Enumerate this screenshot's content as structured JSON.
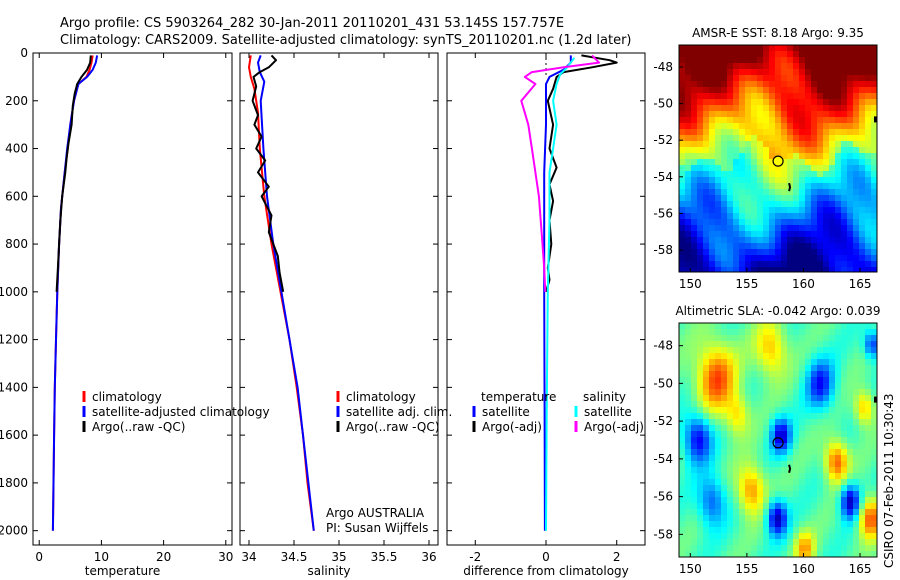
{
  "header": {
    "line1": "Argo profile: CS 5903264_282 30-Jan-2011 20110201_431 53.145S 157.757E",
    "line2": "Climatology: CARS2009. Satellite-adjusted climatology: synTS_20110201.nc (1.2d later)"
  },
  "side_label": "CSIRO 07-Feb-2011 10:30:43",
  "colors": {
    "clim": "#ff0000",
    "sat": "#0000ff",
    "argo": "#000000",
    "sat_sal": "#00ffff",
    "argo_sal": "#ff00ff"
  },
  "chart_data": [
    {
      "type": "line",
      "xlabel": "temperature",
      "xlim": [
        -1,
        31
      ],
      "ylim": [
        2060,
        0
      ],
      "xticks": [
        "0",
        "10",
        "20",
        "30"
      ],
      "yticks": [
        "0",
        "200",
        "400",
        "600",
        "800",
        "1000",
        "1200",
        "1400",
        "1600",
        "1800",
        "2000"
      ],
      "legend": [
        "climatology",
        "satellite-adjusted climatology",
        "Argo(..raw -QC)"
      ],
      "series": [
        {
          "name": "climatology",
          "color": "#ff0000",
          "points": [
            [
              8.6,
              10
            ],
            [
              8.4,
              40
            ],
            [
              8.1,
              70
            ],
            [
              7.6,
              100
            ],
            [
              6.3,
              130
            ],
            [
              5.6,
              200
            ],
            [
              5.0,
              300
            ],
            [
              4.6,
              400
            ],
            [
              4.1,
              500
            ],
            [
              3.5,
              650
            ],
            [
              3.2,
              800
            ],
            [
              2.9,
              1000
            ],
            [
              2.7,
              1200
            ],
            [
              2.5,
              1400
            ],
            [
              2.4,
              1600
            ],
            [
              2.3,
              1800
            ],
            [
              2.2,
              2000
            ]
          ]
        },
        {
          "name": "satellite-adjusted climatology",
          "color": "#0000ff",
          "points": [
            [
              9.3,
              10
            ],
            [
              9.1,
              40
            ],
            [
              8.6,
              70
            ],
            [
              7.7,
              100
            ],
            [
              6.3,
              130
            ],
            [
              5.6,
              200
            ],
            [
              5.0,
              300
            ],
            [
              4.5,
              400
            ],
            [
              4.1,
              500
            ],
            [
              3.5,
              650
            ],
            [
              3.2,
              800
            ],
            [
              2.9,
              1000
            ],
            [
              2.7,
              1200
            ],
            [
              2.5,
              1400
            ],
            [
              2.4,
              1600
            ],
            [
              2.3,
              1800
            ],
            [
              2.2,
              2000
            ]
          ]
        },
        {
          "name": "Argo(..raw -QC)",
          "color": "#000000",
          "points": [
            [
              8.3,
              10
            ],
            [
              8.2,
              40
            ],
            [
              7.7,
              70
            ],
            [
              6.8,
              100
            ],
            [
              6.1,
              130
            ],
            [
              5.7,
              170
            ],
            [
              5.4,
              220
            ],
            [
              5.2,
              300
            ],
            [
              4.7,
              380
            ],
            [
              4.4,
              440
            ],
            [
              4.2,
              500
            ],
            [
              3.7,
              600
            ],
            [
              3.4,
              700
            ],
            [
              3.2,
              800
            ],
            [
              3.0,
              900
            ],
            [
              2.8,
              1000
            ]
          ]
        }
      ]
    },
    {
      "type": "line",
      "xlabel": "salinity",
      "xlim": [
        33.9,
        36.1
      ],
      "ylim": [
        2060,
        0
      ],
      "xticks": [
        "34",
        "34.5",
        "35",
        "35.5",
        "36"
      ],
      "legend": [
        "climatology",
        "satellite adj. clim.",
        "Argo(..raw -QC)"
      ],
      "notes": [
        "Argo AUSTRALIA",
        "PI: Susan Wijffels"
      ],
      "series": [
        {
          "name": "climatology",
          "color": "#ff0000",
          "points": [
            [
              34.02,
              10
            ],
            [
              34.0,
              60
            ],
            [
              34.02,
              100
            ],
            [
              34.06,
              150
            ],
            [
              34.1,
              250
            ],
            [
              34.12,
              400
            ],
            [
              34.17,
              600
            ],
            [
              34.25,
              800
            ],
            [
              34.35,
              1000
            ],
            [
              34.45,
              1200
            ],
            [
              34.53,
              1400
            ],
            [
              34.6,
              1600
            ],
            [
              34.65,
              1800
            ],
            [
              34.72,
              2000
            ]
          ]
        },
        {
          "name": "satellite adj. clim.",
          "color": "#0000ff",
          "points": [
            [
              34.13,
              10
            ],
            [
              34.1,
              40
            ],
            [
              34.12,
              80
            ],
            [
              34.17,
              120
            ],
            [
              34.13,
              200
            ],
            [
              34.16,
              400
            ],
            [
              34.2,
              600
            ],
            [
              34.27,
              800
            ],
            [
              34.36,
              1000
            ],
            [
              34.45,
              1200
            ],
            [
              34.54,
              1400
            ],
            [
              34.6,
              1600
            ],
            [
              34.66,
              1800
            ],
            [
              34.72,
              2000
            ]
          ]
        },
        {
          "name": "Argo(..raw -QC)",
          "color": "#000000",
          "points": [
            [
              34.25,
              10
            ],
            [
              34.3,
              30
            ],
            [
              34.22,
              60
            ],
            [
              34.12,
              80
            ],
            [
              34.05,
              100
            ],
            [
              34.08,
              140
            ],
            [
              34.04,
              200
            ],
            [
              34.1,
              260
            ],
            [
              34.06,
              300
            ],
            [
              34.14,
              350
            ],
            [
              34.08,
              400
            ],
            [
              34.18,
              450
            ],
            [
              34.1,
              500
            ],
            [
              34.22,
              560
            ],
            [
              34.14,
              600
            ],
            [
              34.25,
              680
            ],
            [
              34.22,
              750
            ],
            [
              34.32,
              850
            ],
            [
              34.34,
              920
            ],
            [
              34.38,
              1000
            ]
          ]
        }
      ]
    },
    {
      "type": "line",
      "xlabel": "difference from climatology",
      "xlim": [
        -2.8,
        2.8
      ],
      "ylim": [
        2060,
        0
      ],
      "xticks": [
        "-2",
        "0",
        "2"
      ],
      "legend": [
        "temperature",
        "satellite",
        "Argo(-adj)",
        "salinity",
        "satellite",
        "Argo(-adj)"
      ],
      "series": [
        {
          "name": "temperature satellite",
          "color": "#0000ff",
          "points": [
            [
              0.7,
              10
            ],
            [
              0.7,
              40
            ],
            [
              0.5,
              70
            ],
            [
              0.1,
              100
            ],
            [
              0.0,
              130
            ],
            [
              0.0,
              300
            ],
            [
              -0.05,
              500
            ],
            [
              -0.05,
              800
            ],
            [
              -0.05,
              1000
            ],
            [
              -0.04,
              1500
            ],
            [
              -0.03,
              2000
            ]
          ]
        },
        {
          "name": "temperature Argo(-adj)",
          "color": "#000000",
          "points": [
            [
              1.0,
              10
            ],
            [
              1.8,
              30
            ],
            [
              2.0,
              40
            ],
            [
              1.3,
              60
            ],
            [
              0.5,
              80
            ],
            [
              0.3,
              100
            ],
            [
              0.2,
              150
            ],
            [
              0.05,
              200
            ],
            [
              0.2,
              300
            ],
            [
              0.1,
              400
            ],
            [
              0.3,
              480
            ],
            [
              0.1,
              550
            ],
            [
              0.2,
              620
            ],
            [
              0.1,
              700
            ],
            [
              0.15,
              800
            ],
            [
              0.05,
              900
            ],
            [
              0.1,
              950
            ],
            [
              0.0,
              1000
            ]
          ]
        },
        {
          "name": "salinity satellite",
          "color": "#00ffff",
          "points": [
            [
              0.8,
              20
            ],
            [
              0.6,
              60
            ],
            [
              0.4,
              90
            ],
            [
              0.3,
              130
            ],
            [
              0.2,
              200
            ],
            [
              0.3,
              300
            ],
            [
              0.2,
              400
            ],
            [
              0.1,
              500
            ],
            [
              0.1,
              700
            ],
            [
              0.05,
              1000
            ],
            [
              0.02,
              1500
            ],
            [
              0.0,
              2000
            ]
          ]
        },
        {
          "name": "salinity Argo(-adj)",
          "color": "#ff00ff",
          "points": [
            [
              1.3,
              10
            ],
            [
              1.5,
              40
            ],
            [
              0.5,
              60
            ],
            [
              -0.4,
              80
            ],
            [
              -0.6,
              100
            ],
            [
              -0.3,
              130
            ],
            [
              -0.7,
              200
            ],
            [
              -0.5,
              300
            ],
            [
              -0.4,
              400
            ],
            [
              -0.3,
              500
            ],
            [
              -0.2,
              600
            ],
            [
              -0.15,
              700
            ],
            [
              -0.1,
              800
            ],
            [
              -0.05,
              900
            ],
            [
              -0.02,
              1000
            ]
          ]
        }
      ]
    },
    {
      "type": "heatmap",
      "title": "AMSR-E SST: 8.18 Argo: 9.35",
      "xlim": [
        149,
        166.5
      ],
      "ylim": [
        -59.2,
        -46.8
      ],
      "xticks": [
        "150",
        "155",
        "160",
        "165"
      ],
      "yticks": [
        "-48",
        "-50",
        "-52",
        "-54",
        "-56",
        "-58"
      ],
      "marker": {
        "lon": 157.757,
        "lat": -53.145
      }
    },
    {
      "type": "heatmap",
      "title": "Altimetric SLA: -0.042 Argo: 0.039",
      "xlim": [
        149,
        166.5
      ],
      "ylim": [
        -59.2,
        -46.8
      ],
      "xticks": [
        "150",
        "155",
        "160",
        "165"
      ],
      "yticks": [
        "-48",
        "-50",
        "-52",
        "-54",
        "-56",
        "-58"
      ],
      "marker": {
        "lon": 157.757,
        "lat": -53.145
      }
    }
  ]
}
